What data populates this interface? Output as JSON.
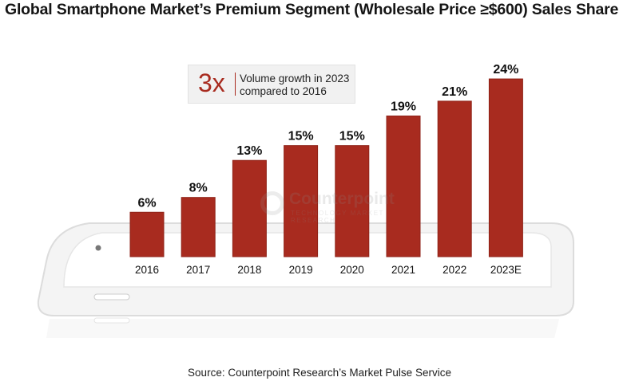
{
  "colors": {
    "bar": "#a82b1f",
    "bar_edge": "#8f2318",
    "accent": "#a82b1f",
    "phone_body": "#f4f4f4",
    "phone_edge": "#dcdcdc"
  },
  "chart_data": {
    "type": "bar",
    "title": "Global Smartphone Market’s Premium Segment (Wholesale Price ≥$600) Sales Share",
    "categories": [
      "2016",
      "2017",
      "2018",
      "2019",
      "2020",
      "2021",
      "2022",
      "2023E"
    ],
    "values": [
      6,
      8,
      13,
      15,
      15,
      19,
      21,
      24
    ],
    "data_labels": [
      "6%",
      "8%",
      "13%",
      "15%",
      "15%",
      "19%",
      "21%",
      "24%"
    ],
    "unit": "%",
    "xlabel": "",
    "ylabel": "",
    "ylim": [
      0,
      24
    ],
    "grid": false,
    "legend": "none"
  },
  "callout": {
    "big": "3x",
    "text_line1": "Volume growth in 2023",
    "text_line2": "compared to 2016"
  },
  "watermark": {
    "name": "Counterpoint",
    "tagline": "TECHNOLOGY MARKET RESEARCH"
  },
  "source": "Source: Counterpoint Research’s Market Pulse Service"
}
